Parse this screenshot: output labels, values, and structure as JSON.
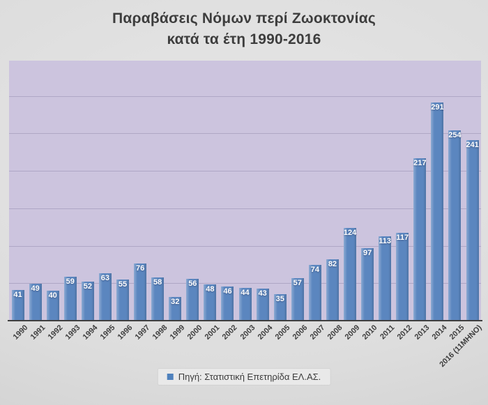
{
  "chart": {
    "title_line1": "Παραβάσεις Νόμων περί Ζωοκτονίας",
    "title_line2": "κατά τα έτη 1990-2016",
    "legend_label": "Πηγή: Στατιστική Επετηρίδα ΕΛ.ΑΣ."
  },
  "chart_data": {
    "type": "bar",
    "title": "Παραβάσεις Νόμων περί Ζωοκτονίας κατά τα έτη 1990-2016",
    "series_name": "Πηγή: Στατιστική Επετηρίδα ΕΛ.ΑΣ.",
    "categories": [
      "1990",
      "1991",
      "1992",
      "1993",
      "1994",
      "1995",
      "1996",
      "1997",
      "1998",
      "1999",
      "2000",
      "2001",
      "2002",
      "2003",
      "2004",
      "2005",
      "2006",
      "2007",
      "2008",
      "2009",
      "2010",
      "2011",
      "2012",
      "2013",
      "2014",
      "2015",
      "2016 (11ΜΗΝΟ)"
    ],
    "values": [
      41,
      49,
      40,
      59,
      52,
      63,
      55,
      76,
      58,
      32,
      56,
      48,
      46,
      44,
      43,
      35,
      57,
      74,
      82,
      124,
      97,
      113,
      117,
      217,
      291,
      254,
      241
    ],
    "data_labels": true,
    "xlabel": "",
    "ylabel": "",
    "ylim": [
      0,
      350
    ],
    "gridline_step": 50,
    "grid": true,
    "y_axis_labels_visible": false,
    "legend_position": "bottom",
    "colors": {
      "bar": "#5b86bf",
      "plot_bg": "#ccc4de",
      "gridline": "#afa7c5",
      "axis_line": "#3f3f3f",
      "data_label_text": "#ffffff",
      "tick_label_text": "#3e3e3e",
      "title_text": "#3d3d3d",
      "legend_marker": "#4f81bd",
      "page_bg": "#dcdcdc"
    }
  }
}
